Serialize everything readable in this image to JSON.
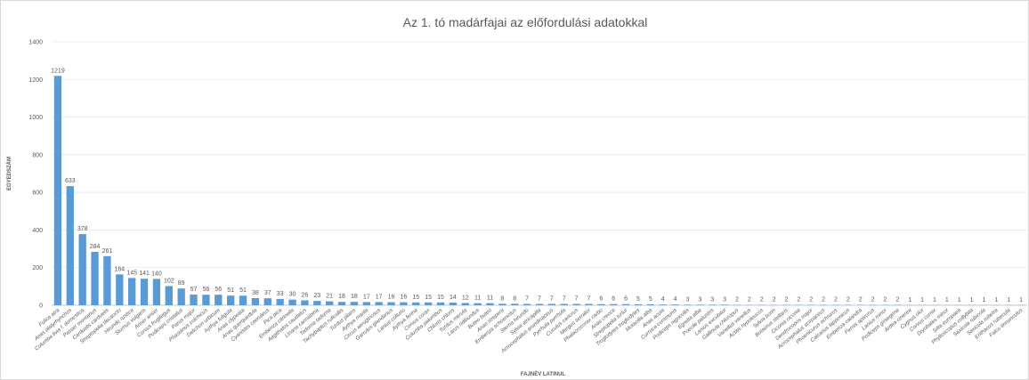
{
  "chart_data": {
    "type": "bar",
    "title": "Az 1. tó madárfajai az előfordulási adatokkal",
    "x_label": "FAJNÉV LATINUL",
    "y_label": "EGYEDSZÁM",
    "color": "#5b9bd5",
    "grid": true,
    "ylim": [
      0,
      1400
    ],
    "yticks": [
      0,
      200,
      400,
      600,
      800,
      1000,
      1200,
      1400
    ],
    "categories": [
      "Fulica atra",
      "Anas platyrhynchos",
      "Columba livia f. domestica",
      "Passer montanus",
      "Carduelis carduelis",
      "Streptopelia decaocto",
      "Hirundo rustica",
      "Sturnus vulgaris",
      "Anser anser",
      "Corvus frugilegus",
      "Podiceps cristatus",
      "Parus major",
      "Phasianus colchicus",
      "Delichon urbicum",
      "Aythya fuligula",
      "Anas clypeata",
      "Anas querquedula",
      "Cyanistes caeruleus",
      "Pica pica",
      "Emberiza citrinella",
      "Aegithalos caudatus",
      "Linaria cannabina",
      "Tadorna tadorna",
      "Tachybaptus ruficollis",
      "Turdus pilaris",
      "Aythya marila",
      "Circus aeruginosus",
      "Garrulus glandarius",
      "Lanius collurio",
      "Aythya ferina",
      "Corvus corax",
      "Columba palumbus",
      "Chloris chloris",
      "Turdus merula",
      "Larus ridibundus",
      "Buteo buteo",
      "Anas strepera",
      "Emberiza schoeniclus",
      "Sterna hirundo",
      "Sylvia atricapilla",
      "Acrocephalus arundinaceus",
      "Pyrrhula pyrrhula",
      "Cuculus canorus",
      "Mergus serrator",
      "Phalacrocorax carbo",
      "Anas crecca",
      "Streptopelia turtur",
      "Troglodytes troglodytes",
      "Motacilla alba",
      "Anas acuta",
      "Curruca communis",
      "Podiceps nigricollis",
      "Egretta alba",
      "Poecile palustris",
      "Lanius excubitor",
      "Gallinula chloropus",
      "Vanellus vanellus",
      "Actitis hypoleucos",
      "Sylvia borin",
      "Botaurus stellaris",
      "Ciconia ciconia",
      "Dendrocopos major",
      "Acrocephalus scirpaceus",
      "Phoenicurus ochruros",
      "Calcarius lapponicus",
      "Emberiza calandra",
      "Pernis apivorus",
      "Lanius minor",
      "Podiceps grisegena",
      "Ardea cinerea",
      "Cygnus olor",
      "Corvus cornix",
      "Dryobates minor",
      "Sitta europaea",
      "Phylloscopus collybita",
      "Saxicola rubicola",
      "Saxicola rubetra",
      "Erithacus rubecula",
      "Falco tinnunculus"
    ],
    "values": [
      1219,
      633,
      378,
      284,
      261,
      164,
      145,
      141,
      140,
      102,
      89,
      57,
      56,
      56,
      51,
      51,
      38,
      37,
      33,
      30,
      26,
      23,
      21,
      18,
      18,
      17,
      17,
      16,
      16,
      15,
      15,
      15,
      14,
      12,
      11,
      11,
      8,
      8,
      7,
      7,
      7,
      7,
      7,
      7,
      6,
      6,
      6,
      5,
      5,
      4,
      4,
      3,
      3,
      3,
      3,
      2,
      2,
      2,
      2,
      2,
      2,
      2,
      2,
      2,
      2,
      2,
      2,
      2,
      2,
      1,
      1,
      1,
      1,
      1,
      1,
      1,
      1,
      1,
      1
    ]
  }
}
